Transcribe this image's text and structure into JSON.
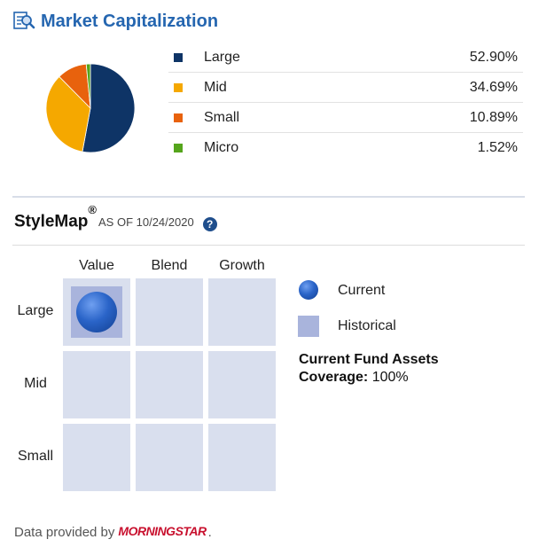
{
  "market_cap": {
    "title": "Market Capitalization",
    "items": [
      {
        "label": "Large",
        "value": "52.90%",
        "pct": 52.9,
        "color": "#0e3466"
      },
      {
        "label": "Mid",
        "value": "34.69%",
        "pct": 34.69,
        "color": "#f5a800"
      },
      {
        "label": "Small",
        "value": "10.89%",
        "pct": 10.89,
        "color": "#e8620d"
      },
      {
        "label": "Micro",
        "value": "1.52%",
        "pct": 1.52,
        "color": "#55a51c"
      }
    ]
  },
  "stylemap": {
    "title": "StyleMap",
    "reg_mark": "®",
    "as_of": "AS OF 10/24/2020",
    "help_icon": "?",
    "columns": [
      "Value",
      "Blend",
      "Growth"
    ],
    "rows": [
      "Large",
      "Mid",
      "Small"
    ],
    "current_position": {
      "row": "Large",
      "column": "Value"
    },
    "historical_position": {
      "row": "Large",
      "column": "Value"
    },
    "key": {
      "current_label": "Current",
      "historical_label": "Historical"
    },
    "assets_line1": "Current Fund Assets",
    "assets_line2_label": "Coverage:",
    "assets_line2_value": "100%"
  },
  "footer": {
    "text": "Data provided by",
    "logo": "MORNINGSTAR",
    "suffix": "."
  },
  "colors": {
    "title_blue": "#2566b0",
    "cell_bg": "#d9dfee",
    "historical": "#a9b4dc",
    "current": "#2a64c8"
  }
}
